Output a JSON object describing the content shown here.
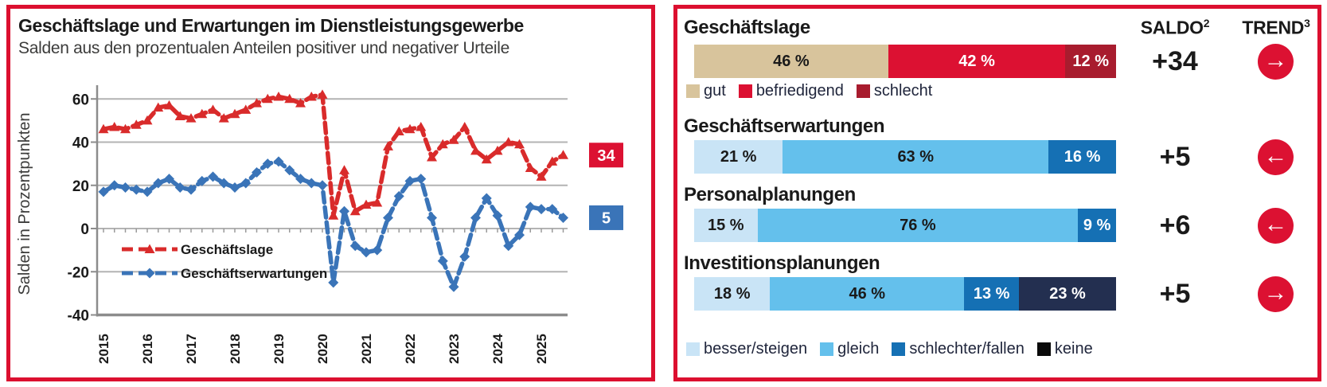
{
  "left_panel": {
    "title": "Geschäftslage und Erwartungen im Dienstleistungsgewerbe",
    "subtitle": "Salden aus den prozentualen Anteilen positiver und negativer Urteile",
    "chart_data": {
      "type": "line",
      "ylabel": "Salden in Prozentpunkten",
      "ylim": [
        -40,
        65
      ],
      "yticks": [
        60,
        40,
        20,
        0,
        -20,
        -40
      ],
      "x_unit": "quarter",
      "x_labels_years": [
        "2015",
        "2016",
        "2017",
        "2018",
        "2019",
        "2020",
        "2021",
        "2022",
        "2023",
        "2024",
        "2025"
      ],
      "grid": true,
      "legend_position": "inside-bottom-left",
      "series": [
        {
          "name": "Geschäftslage",
          "marker": "triangle",
          "color": "#d92b2b",
          "box_color": "#dc1132",
          "end_label": "34",
          "values": [
            46,
            47,
            46,
            48,
            50,
            56,
            57,
            52,
            51,
            53,
            55,
            51,
            53,
            55,
            58,
            60,
            61,
            60,
            58,
            61,
            62,
            6,
            27,
            8,
            11,
            12,
            38,
            45,
            46,
            47,
            33,
            39,
            41,
            47,
            36,
            32,
            36,
            40,
            39,
            28,
            24,
            31,
            34
          ]
        },
        {
          "name": "Geschäftserwartungen",
          "marker": "diamond",
          "color": "#3a74b8",
          "box_color": "#3a74b8",
          "end_label": "5",
          "values": [
            17,
            20,
            19,
            18,
            17,
            21,
            23,
            19,
            18,
            22,
            24,
            21,
            19,
            21,
            26,
            30,
            31,
            27,
            23,
            21,
            20,
            -25,
            8,
            -8,
            -11,
            -10,
            5,
            15,
            22,
            23,
            5,
            -15,
            -27,
            -13,
            5,
            14,
            6,
            -8,
            -3,
            10,
            9,
            9,
            5
          ]
        }
      ]
    }
  },
  "right_panel": {
    "saldo_header": {
      "label": "SALDO",
      "sup": "2"
    },
    "trend_header": {
      "label": "TREND",
      "sup": "3"
    },
    "rows": [
      {
        "title": "Geschäftslage",
        "saldo": "+34",
        "trend": "right",
        "segments": [
          {
            "label": "46 %",
            "value": 46,
            "color": "tan",
            "text": "dark"
          },
          {
            "label": "42 %",
            "value": 42,
            "color": "red",
            "text": "light"
          },
          {
            "label": "12 %",
            "value": 12,
            "color": "dark_red",
            "text": "light"
          }
        ]
      },
      {
        "title": "Geschäftserwartungen",
        "saldo": "+5",
        "trend": "left",
        "segments": [
          {
            "label": "21 %",
            "value": 21,
            "color": "light_blue",
            "text": "dark"
          },
          {
            "label": "63 %",
            "value": 63,
            "color": "mid_blue",
            "text": "dark"
          },
          {
            "label": "16 %",
            "value": 16,
            "color": "dark_blue",
            "text": "light"
          }
        ]
      },
      {
        "title": "Personalplanungen",
        "saldo": "+6",
        "trend": "left",
        "segments": [
          {
            "label": "15 %",
            "value": 15,
            "color": "light_blue",
            "text": "dark"
          },
          {
            "label": "76 %",
            "value": 76,
            "color": "mid_blue",
            "text": "dark"
          },
          {
            "label": "9 %",
            "value": 9,
            "color": "dark_blue",
            "text": "light"
          }
        ]
      },
      {
        "title": "Investitionsplanungen",
        "saldo": "+5",
        "trend": "right",
        "segments": [
          {
            "label": "18 %",
            "value": 18,
            "color": "light_blue",
            "text": "dark"
          },
          {
            "label": "46 %",
            "value": 46,
            "color": "mid_blue",
            "text": "dark"
          },
          {
            "label": "13 %",
            "value": 13,
            "color": "dark_blue",
            "text": "light"
          },
          {
            "label": "23 %",
            "value": 23,
            "color": "navy",
            "text": "light"
          }
        ]
      }
    ],
    "legend_top": [
      {
        "label": "gut",
        "color": "tan"
      },
      {
        "label": "befriedigend",
        "color": "red"
      },
      {
        "label": "schlecht",
        "color": "dark_red"
      }
    ],
    "legend_bottom": [
      {
        "label": "besser/steigen",
        "color": "light_blue"
      },
      {
        "label": "gleich",
        "color": "mid_blue"
      },
      {
        "label": "schlechter/fallen",
        "color": "dark_blue"
      },
      {
        "label": "keine",
        "color": "black"
      }
    ]
  },
  "colors": {
    "panel_border": "#dc0f2f",
    "tan": "#d8c49c",
    "red": "#dc1132",
    "dark_red": "#a81c2e",
    "light_blue": "#c9e4f6",
    "mid_blue": "#64c0ec",
    "dark_blue": "#1570b4",
    "navy": "#232f50",
    "black": "#0a0a0a",
    "trend_circle": "#dc1132",
    "grid": "#b3b3b3",
    "axis": "#8c8c8c",
    "text_dark": "#1a1a1a",
    "text_gray": "#3c3c3b"
  }
}
